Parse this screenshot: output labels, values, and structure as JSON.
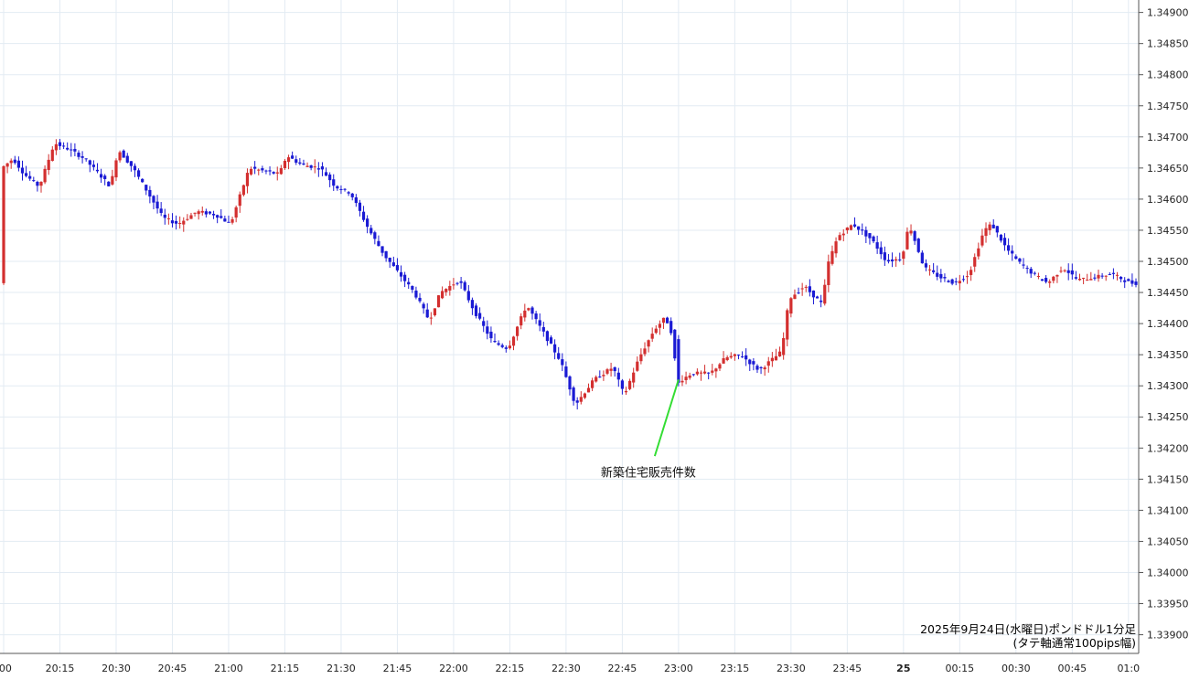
{
  "chart_data": {
    "type": "candlestick",
    "title": "2025年9月24日(水曜日)ポンドドル1分足",
    "subtitle": "(タテ軸通常100pips幅)",
    "annotation": "新築住宅販売件数",
    "ylim": [
      1.3387,
      1.3492
    ],
    "y_ticks": [
      "1.34900",
      "1.34850",
      "1.34800",
      "1.34750",
      "1.34700",
      "1.34650",
      "1.34600",
      "1.34550",
      "1.34500",
      "1.34450",
      "1.34400",
      "1.34350",
      "1.34300",
      "1.34250",
      "1.34200",
      "1.34150",
      "1.34100",
      "1.34050",
      "1.34000",
      "1.33950",
      "1.33900"
    ],
    "x_ticks": [
      {
        "label": ":00",
        "bold": false
      },
      {
        "label": "20:15",
        "bold": false
      },
      {
        "label": "20:30",
        "bold": false
      },
      {
        "label": "20:45",
        "bold": false
      },
      {
        "label": "21:00",
        "bold": false
      },
      {
        "label": "21:15",
        "bold": false
      },
      {
        "label": "21:30",
        "bold": false
      },
      {
        "label": "21:45",
        "bold": false
      },
      {
        "label": "22:00",
        "bold": false
      },
      {
        "label": "22:15",
        "bold": false
      },
      {
        "label": "22:30",
        "bold": false
      },
      {
        "label": "22:45",
        "bold": false
      },
      {
        "label": "23:00",
        "bold": false
      },
      {
        "label": "23:15",
        "bold": false
      },
      {
        "label": "23:30",
        "bold": false
      },
      {
        "label": "23:45",
        "bold": false
      },
      {
        "label": "25",
        "bold": true
      },
      {
        "label": "00:15",
        "bold": false
      },
      {
        "label": "00:30",
        "bold": false
      },
      {
        "label": "00:45",
        "bold": false
      },
      {
        "label": "01:0",
        "bold": false
      }
    ],
    "x_start": "20:00",
    "x_end": "01:02",
    "annotation_time": "23:00",
    "grid": true,
    "up_color": "#d32f2f",
    "down_color": "#1a1ad4",
    "annotation_line_color": "#33dd33",
    "candle_path": [
      [
        "20:00",
        1.3465
      ],
      [
        "20:03",
        1.34665
      ],
      [
        "20:06",
        1.3464
      ],
      [
        "20:10",
        1.3462
      ],
      [
        "20:14",
        1.3469
      ],
      [
        "20:18",
        1.3468
      ],
      [
        "20:22",
        1.34665
      ],
      [
        "20:26",
        1.3464
      ],
      [
        "20:29",
        1.3462
      ],
      [
        "20:31",
        1.3468
      ],
      [
        "20:35",
        1.3465
      ],
      [
        "20:39",
        1.3461
      ],
      [
        "20:43",
        1.3457
      ],
      [
        "20:47",
        1.3456
      ],
      [
        "20:52",
        1.3458
      ],
      [
        "20:57",
        1.34575
      ],
      [
        "21:01",
        1.3456
      ],
      [
        "21:06",
        1.3465
      ],
      [
        "21:10",
        1.34645
      ],
      [
        "21:14",
        1.3464
      ],
      [
        "21:16",
        1.3467
      ],
      [
        "21:20",
        1.34655
      ],
      [
        "21:25",
        1.3465
      ],
      [
        "21:29",
        1.3462
      ],
      [
        "21:33",
        1.3461
      ],
      [
        "21:38",
        1.3455
      ],
      [
        "21:42",
        1.3451
      ],
      [
        "21:46",
        1.3448
      ],
      [
        "21:50",
        1.3445
      ],
      [
        "21:54",
        1.34405
      ],
      [
        "21:57",
        1.3445
      ],
      [
        "22:02",
        1.3447
      ],
      [
        "22:06",
        1.3442
      ],
      [
        "22:11",
        1.3437
      ],
      [
        "22:15",
        1.3436
      ],
      [
        "22:20",
        1.3443
      ],
      [
        "22:25",
        1.3438
      ],
      [
        "22:29",
        1.3434
      ],
      [
        "22:33",
        1.3427
      ],
      [
        "22:38",
        1.3431
      ],
      [
        "22:43",
        1.3433
      ],
      [
        "22:46",
        1.34285
      ],
      [
        "22:50",
        1.34345
      ],
      [
        "22:54",
        1.3439
      ],
      [
        "22:57",
        1.3441
      ],
      [
        "22:59",
        1.3438
      ],
      [
        "23:00",
        1.34305
      ],
      [
        "23:04",
        1.3432
      ],
      [
        "23:09",
        1.3432
      ],
      [
        "23:13",
        1.34345
      ],
      [
        "23:17",
        1.3435
      ],
      [
        "23:22",
        1.34325
      ],
      [
        "23:26",
        1.34345
      ],
      [
        "23:28",
        1.34355
      ],
      [
        "23:30",
        1.3444
      ],
      [
        "23:34",
        1.3446
      ],
      [
        "23:39",
        1.3443
      ],
      [
        "23:40",
        1.3449
      ],
      [
        "23:43",
        1.3454
      ],
      [
        "23:47",
        1.3456
      ],
      [
        "23:52",
        1.34535
      ],
      [
        "23:56",
        1.345
      ],
      [
        "00:00",
        1.34505
      ],
      [
        "00:02",
        1.3456
      ],
      [
        "00:06",
        1.3449
      ],
      [
        "00:10",
        1.34475
      ],
      [
        "00:14",
        1.34465
      ],
      [
        "00:18",
        1.3448
      ],
      [
        "00:22",
        1.3455
      ],
      [
        "00:24",
        1.3456
      ],
      [
        "00:28",
        1.3452
      ],
      [
        "00:31",
        1.345
      ],
      [
        "00:35",
        1.3448
      ],
      [
        "00:39",
        1.34465
      ],
      [
        "00:43",
        1.3449
      ],
      [
        "00:47",
        1.3447
      ],
      [
        "00:52",
        1.34475
      ],
      [
        "00:56",
        1.3448
      ],
      [
        "01:01",
        1.34465
      ]
    ]
  }
}
